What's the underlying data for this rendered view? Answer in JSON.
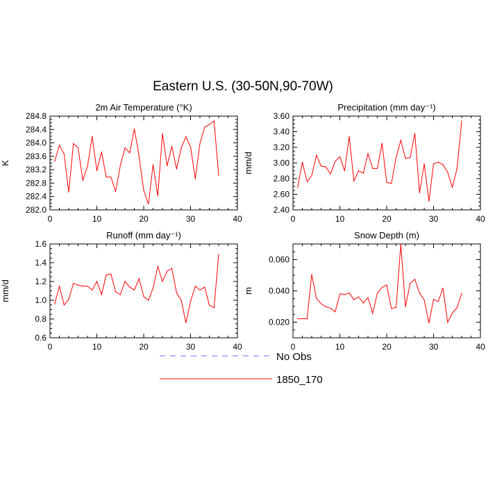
{
  "figure_title": "Eastern U.S. (30-50N,90-70W)",
  "colors": {
    "model": "#ff0000",
    "obs": "#6b6bff",
    "axis": "#000000"
  },
  "legend": {
    "items": [
      {
        "label": "No Obs",
        "style": "dashed",
        "color": "#6b6bff"
      },
      {
        "label": "1850_170",
        "style": "solid",
        "color": "#ff0000"
      }
    ]
  },
  "chart_data": [
    {
      "id": "temp",
      "type": "line",
      "title": "2m Air Temperature (°K)",
      "ylabel": "K",
      "xlim": [
        0,
        40
      ],
      "ylim": [
        282.0,
        284.8
      ],
      "xticks": [
        0,
        10,
        20,
        30,
        40
      ],
      "yticks": [
        282.0,
        282.4,
        282.8,
        283.2,
        283.6,
        284.0,
        284.4,
        284.8
      ],
      "ytick_labels": [
        "282.0",
        "282.4",
        "282.8",
        "283.2",
        "283.6",
        "284.0",
        "284.4",
        "284.8"
      ],
      "series": [
        {
          "name": "1850_170",
          "x": [
            1,
            2,
            3,
            4,
            5,
            6,
            7,
            8,
            9,
            10,
            11,
            12,
            13,
            14,
            15,
            16,
            17,
            18,
            19,
            20,
            21,
            22,
            23,
            24,
            25,
            26,
            27,
            28,
            29,
            30,
            31,
            32,
            33,
            34,
            35,
            36
          ],
          "values": [
            283.45,
            283.93,
            283.67,
            282.53,
            283.98,
            283.85,
            282.88,
            283.3,
            284.19,
            283.17,
            283.73,
            282.98,
            282.98,
            282.55,
            283.32,
            283.85,
            283.7,
            284.42,
            283.6,
            282.58,
            282.17,
            283.35,
            282.42,
            284.27,
            283.32,
            283.9,
            283.22,
            283.85,
            284.18,
            283.88,
            282.93,
            283.98,
            284.47,
            284.55,
            284.65,
            283.03
          ]
        }
      ]
    },
    {
      "id": "precip",
      "type": "line",
      "title": "Precipitation (mm day⁻¹)",
      "ylabel": "mm/d",
      "xlim": [
        0,
        40
      ],
      "ylim": [
        2.4,
        3.6
      ],
      "xticks": [
        0,
        10,
        20,
        30,
        40
      ],
      "yticks": [
        2.4,
        2.6,
        2.8,
        3.0,
        3.2,
        3.4,
        3.6
      ],
      "ytick_labels": [
        "2.40",
        "2.60",
        "2.80",
        "3.00",
        "3.20",
        "3.40",
        "3.60"
      ],
      "series": [
        {
          "name": "1850_170",
          "x": [
            1,
            2,
            3,
            4,
            5,
            6,
            7,
            8,
            9,
            10,
            11,
            12,
            13,
            14,
            15,
            16,
            17,
            18,
            19,
            20,
            21,
            22,
            23,
            24,
            25,
            26,
            27,
            28,
            29,
            30,
            31,
            32,
            33,
            34,
            35,
            36
          ],
          "values": [
            2.69,
            3.01,
            2.76,
            2.84,
            3.1,
            2.96,
            2.95,
            2.86,
            3.02,
            3.08,
            2.9,
            3.34,
            2.77,
            2.9,
            2.87,
            3.12,
            2.93,
            2.93,
            3.25,
            2.75,
            2.74,
            3.07,
            3.29,
            3.06,
            3.07,
            3.38,
            2.62,
            2.99,
            2.51,
            2.99,
            3.01,
            2.98,
            2.88,
            2.69,
            2.93,
            3.54
          ]
        }
      ]
    },
    {
      "id": "runoff",
      "type": "line",
      "title": "Runoff (mm day⁻¹)",
      "ylabel": "mm/d",
      "xlim": [
        0,
        40
      ],
      "ylim": [
        0.6,
        1.6
      ],
      "xticks": [
        0,
        10,
        20,
        30,
        40
      ],
      "yticks": [
        0.6,
        0.8,
        1.0,
        1.2,
        1.4,
        1.6
      ],
      "ytick_labels": [
        "0.6",
        "0.8",
        "1.0",
        "1.2",
        "1.4",
        "1.6"
      ],
      "series": [
        {
          "name": "1850_170",
          "x": [
            1,
            2,
            3,
            4,
            5,
            6,
            7,
            8,
            9,
            10,
            11,
            12,
            13,
            14,
            15,
            16,
            17,
            18,
            19,
            20,
            21,
            22,
            23,
            24,
            25,
            26,
            27,
            28,
            29,
            30,
            31,
            32,
            33,
            34,
            35,
            36
          ],
          "values": [
            0.96,
            1.15,
            0.95,
            1.01,
            1.18,
            1.16,
            1.15,
            1.15,
            1.11,
            1.2,
            1.06,
            1.27,
            1.28,
            1.09,
            1.06,
            1.2,
            1.14,
            1.11,
            1.23,
            1.04,
            1.0,
            1.13,
            1.36,
            1.2,
            1.31,
            1.34,
            1.08,
            1.0,
            0.76,
            0.99,
            1.15,
            1.11,
            1.14,
            0.95,
            0.92,
            1.49
          ]
        }
      ]
    },
    {
      "id": "snow",
      "type": "line",
      "title": "Snow Depth (m)",
      "ylabel": "m",
      "xlim": [
        0,
        40
      ],
      "ylim": [
        0.01,
        0.07
      ],
      "xticks": [
        0,
        10,
        20,
        30,
        40
      ],
      "yticks": [
        0.02,
        0.04,
        0.06
      ],
      "ytick_labels": [
        "0.020",
        "0.040",
        "0.060"
      ],
      "series": [
        {
          "name": "1850_170",
          "x": [
            1,
            2,
            3,
            4,
            5,
            6,
            7,
            8,
            9,
            10,
            11,
            12,
            13,
            14,
            15,
            16,
            17,
            18,
            19,
            20,
            21,
            22,
            23,
            24,
            25,
            26,
            27,
            28,
            29,
            30,
            31,
            32,
            33,
            34,
            35,
            36
          ],
          "values": [
            0.0222,
            0.0222,
            0.0222,
            0.0505,
            0.0352,
            0.0318,
            0.0298,
            0.029,
            0.0266,
            0.0381,
            0.0377,
            0.0386,
            0.0344,
            0.0362,
            0.0322,
            0.0358,
            0.0256,
            0.0385,
            0.0422,
            0.0438,
            0.0288,
            0.0294,
            0.0697,
            0.0298,
            0.0449,
            0.0474,
            0.0385,
            0.0343,
            0.0195,
            0.0346,
            0.0332,
            0.0418,
            0.0198,
            0.0258,
            0.0293,
            0.0384
          ]
        }
      ]
    }
  ]
}
